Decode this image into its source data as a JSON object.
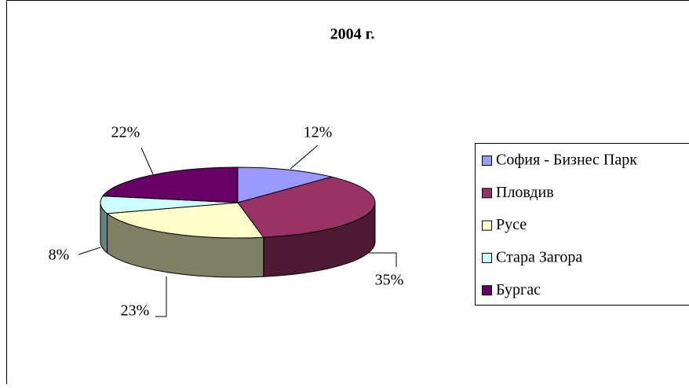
{
  "chart_data": {
    "type": "pie",
    "title": "2004 г.",
    "categories": [
      "София - Бизнес Парк",
      "Пловдив",
      "Русе",
      "Стара Загора",
      "Бургас"
    ],
    "values": [
      12,
      35,
      23,
      8,
      22
    ],
    "value_labels": [
      "12%",
      "35%",
      "23%",
      "8%",
      "22%"
    ],
    "colors": [
      "#9999ff",
      "#993366",
      "#ffffcc",
      "#ccffff",
      "#660066"
    ],
    "legend": "right"
  }
}
